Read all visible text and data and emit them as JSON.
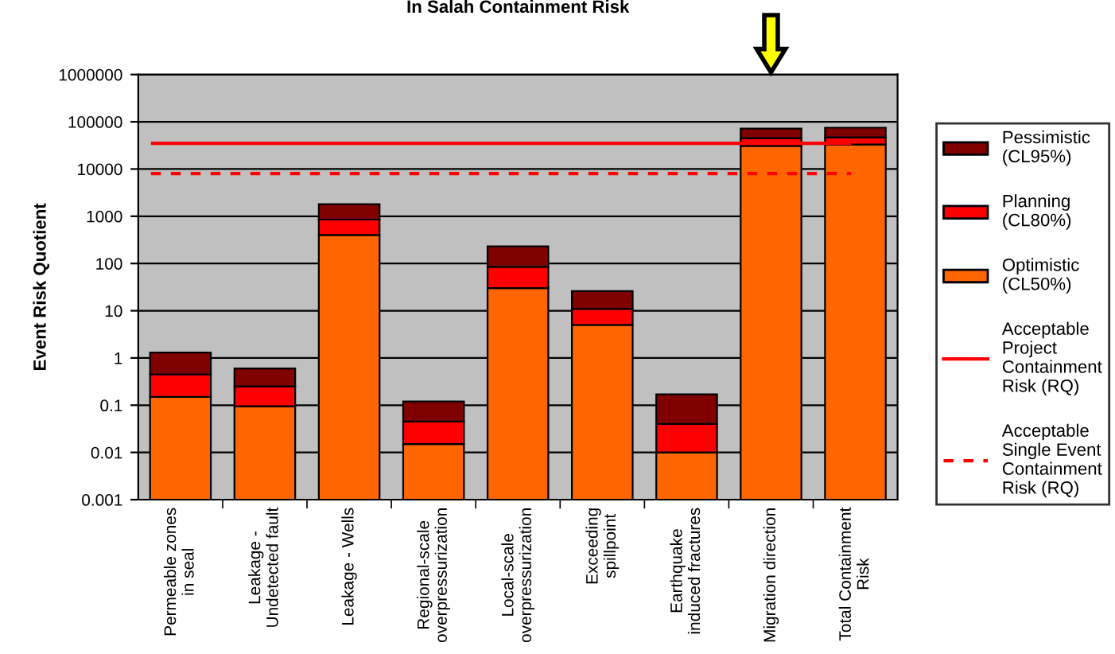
{
  "chart_data": {
    "type": "bar",
    "title": "In Salah Containment Risk",
    "ylabel": "Event Risk Quotient",
    "categories": [
      "Permeable zones\nin seal",
      "Leakage -\nUndetected fault",
      "Leakage - Wells",
      "Regional-scale\noverpressurization",
      "Local-scale\noverpressurization",
      "Exceeding\nspillpoint",
      "Earthquake\ninduced fractures",
      "Migration direction",
      "Total Containment\nRisk"
    ],
    "stacked": true,
    "log": true,
    "series": [
      {
        "name": "Optimistic\n(CL50%)",
        "color": "#ff6600",
        "values": [
          0.15,
          0.095,
          400,
          0.015,
          30,
          5,
          0.01,
          31000,
          33000
        ]
      },
      {
        "name": "Planning\n(CL80%)",
        "color": "#ff0000",
        "values": [
          0.3,
          0.155,
          450,
          0.03,
          55,
          6,
          0.03,
          14000,
          14000
        ]
      },
      {
        "name": "Pessimistic\n(CL95%)",
        "color": "#800000",
        "values": [
          0.85,
          0.35,
          950,
          0.075,
          145,
          15,
          0.13,
          27000,
          28000
        ]
      }
    ],
    "ref_lines": [
      {
        "axis": "y",
        "value": 35000,
        "label": "Acceptable\nProject\nContainment\nRisk (RQ)",
        "color": "#ff0000",
        "line_style": "solid"
      },
      {
        "axis": "y",
        "value": 8000,
        "label": "Acceptable\nSingle Event\nContainment\nRisk (RQ)",
        "color": "#ff0000",
        "line_style": "dashed"
      }
    ],
    "ylim": [
      0.001,
      1000000
    ],
    "yticks": [
      {
        "value": 0.001,
        "label": "0.001"
      },
      {
        "value": 0.01,
        "label": "0.01"
      },
      {
        "value": 0.1,
        "label": "0.1"
      },
      1,
      10,
      100,
      1000,
      10000,
      100000,
      1000000
    ],
    "grid": "y",
    "legend": "right"
  }
}
